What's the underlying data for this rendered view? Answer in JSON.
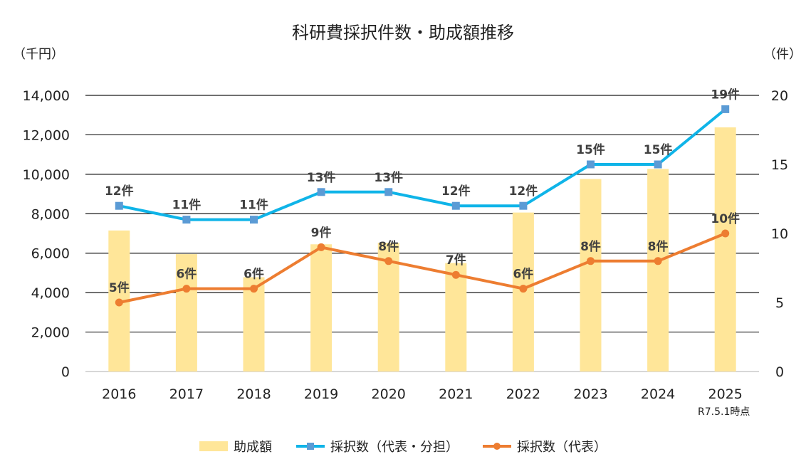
{
  "chart_data": {
    "type": "bar+line",
    "title": "科研費採択件数・助成額推移",
    "left_axis_unit": "（千円）",
    "right_axis_unit": "（件）",
    "categories": [
      "2016",
      "2017",
      "2018",
      "2019",
      "2020",
      "2021",
      "2022",
      "2023",
      "2024",
      "2025"
    ],
    "left_ylim": [
      0,
      14000
    ],
    "left_ticks": [
      "0",
      "2,000",
      "4,000",
      "6,000",
      "8,000",
      "10,000",
      "12,000",
      "14,000"
    ],
    "right_ylim": [
      0,
      20
    ],
    "right_ticks": [
      "0",
      "5",
      "10",
      "15",
      "20"
    ],
    "grid": true,
    "legend_position": "bottom",
    "note": "R7.5.1時点",
    "series": [
      {
        "name": "助成額",
        "kind": "bar",
        "axis": "left",
        "color": "#FFE699",
        "values": [
          7150,
          5950,
          4780,
          6450,
          6530,
          5500,
          8060,
          9760,
          10270,
          12380
        ]
      },
      {
        "name": "採択数（代表・分担）",
        "kind": "line",
        "marker": "square",
        "axis": "right",
        "color": "#0FB4E8",
        "marker_color": "#5B9BD5",
        "values": [
          12,
          11,
          11,
          13,
          13,
          12,
          12,
          15,
          15,
          19
        ],
        "labels": [
          "12件",
          "11件",
          "11件",
          "13件",
          "13件",
          "12件",
          "12件",
          "15件",
          "15件",
          "19件"
        ]
      },
      {
        "name": "採択数（代表）",
        "kind": "line",
        "marker": "circle",
        "axis": "right",
        "color": "#ED7D31",
        "values": [
          5,
          6,
          6,
          9,
          8,
          7,
          6,
          8,
          8,
          10
        ],
        "labels": [
          "5件",
          "6件",
          "6件",
          "9件",
          "8件",
          "7件",
          "6件",
          "8件",
          "8件",
          "10件"
        ]
      }
    ]
  }
}
